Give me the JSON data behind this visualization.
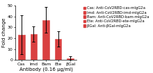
{
  "categories": [
    "Cas",
    "Imd",
    "Bam",
    "Ete",
    "βGal"
  ],
  "values": [
    23,
    24,
    37,
    19.5,
    1.5
  ],
  "errors": [
    18,
    7,
    12,
    7,
    1.5
  ],
  "bar_color": "#d94040",
  "edge_color": "#d94040",
  "ylabel": "Fold change",
  "xlabel": "Antibody (0.16 µg/ml)",
  "ylim": [
    0,
    50
  ],
  "yticks": [
    0,
    10,
    20,
    30,
    40,
    50
  ],
  "legend_entries": [
    "Cas: Anti-CoV2RBD-cas-mIgG2a",
    "Imd: Anti-CoV2RBD-imd-mIgG2a",
    "Bam: Anti-CoV2RBD-bam-mIgG2a",
    "Ete: Anti-CoV2RBD-ete-mIgG2a",
    "βGal: Anti-βGal-mIgG2a"
  ],
  "legend_fontsize": 3.8,
  "axis_fontsize": 5.0,
  "tick_fontsize": 4.5,
  "background_color": "#ffffff"
}
